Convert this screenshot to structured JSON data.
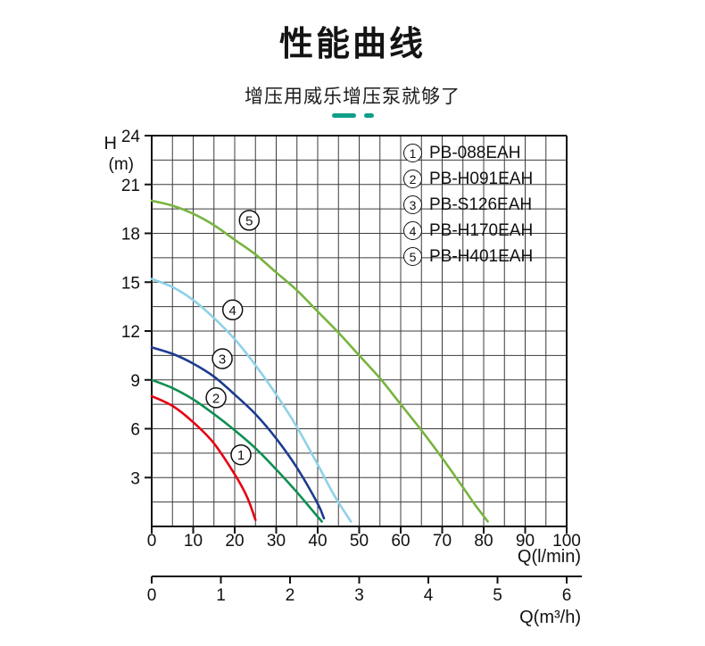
{
  "page": {
    "accent_color": "#0f9f88"
  },
  "chart_data": {
    "type": "line",
    "title": "性能曲线",
    "subtitle": "增压用威乐增压泵就够了",
    "grid": true,
    "legend_position": "top-right-inside",
    "x_axis": {
      "label": "Q(l/min)",
      "min": 0,
      "max": 100,
      "tick_step": 10,
      "grid_step": 5,
      "tick_labels": [
        "0",
        "10",
        "20",
        "30",
        "40",
        "50",
        "60",
        "70",
        "80",
        "90",
        "100"
      ]
    },
    "y_axis": {
      "label": "H",
      "unit": "(m)",
      "min": 0,
      "max": 24,
      "tick_step": 3,
      "grid_step": 1.5,
      "tick_labels": [
        "3",
        "6",
        "9",
        "12",
        "15",
        "18",
        "21",
        "24"
      ]
    },
    "x2_axis": {
      "label": "Q(m³/h)",
      "min": 0,
      "max": 6,
      "tick_step": 1,
      "tick_labels": [
        "0",
        "1",
        "2",
        "3",
        "4",
        "5",
        "6"
      ]
    },
    "legend": [
      {
        "num": "1",
        "label": "PB-088EAH"
      },
      {
        "num": "2",
        "label": "PB-H091EAH"
      },
      {
        "num": "3",
        "label": "PB-S126EAH"
      },
      {
        "num": "4",
        "label": "PB-H170EAH"
      },
      {
        "num": "5",
        "label": "PB-H401EAH"
      }
    ],
    "series": [
      {
        "num": "1",
        "name": "PB-088EAH",
        "color": "#e60013",
        "points": [
          [
            0,
            8
          ],
          [
            5,
            7.4
          ],
          [
            10,
            6.4
          ],
          [
            15,
            5.1
          ],
          [
            20,
            3.2
          ],
          [
            23,
            1.8
          ],
          [
            25,
            0.4
          ]
        ]
      },
      {
        "num": "2",
        "name": "PB-H091EAH",
        "color": "#0e8f52",
        "points": [
          [
            0,
            9
          ],
          [
            5,
            8.5
          ],
          [
            10,
            7.8
          ],
          [
            15,
            6.9
          ],
          [
            20,
            5.9
          ],
          [
            25,
            4.8
          ],
          [
            30,
            3.5
          ],
          [
            35,
            2.1
          ],
          [
            38,
            1.2
          ],
          [
            41,
            0.3
          ]
        ]
      },
      {
        "num": "3",
        "name": "PB-S126EAH",
        "color": "#1d3c91",
        "points": [
          [
            0,
            11
          ],
          [
            5,
            10.6
          ],
          [
            10,
            10
          ],
          [
            15,
            9.2
          ],
          [
            20,
            8.1
          ],
          [
            25,
            6.9
          ],
          [
            30,
            5.4
          ],
          [
            35,
            3.6
          ],
          [
            40,
            1.4
          ],
          [
            41.5,
            0.5
          ]
        ]
      },
      {
        "num": "4",
        "name": "PB-H170EAH",
        "color": "#8fd1e8",
        "points": [
          [
            0,
            15.2
          ],
          [
            5,
            14.7
          ],
          [
            10,
            13.9
          ],
          [
            15,
            12.8
          ],
          [
            20,
            11.5
          ],
          [
            25,
            9.9
          ],
          [
            30,
            8.1
          ],
          [
            35,
            6.1
          ],
          [
            40,
            3.8
          ],
          [
            44,
            1.9
          ],
          [
            48,
            0.3
          ]
        ]
      },
      {
        "num": "5",
        "name": "PB-H401EAH",
        "color": "#78b43e",
        "points": [
          [
            0,
            20
          ],
          [
            5,
            19.7
          ],
          [
            10,
            19.2
          ],
          [
            15,
            18.5
          ],
          [
            20,
            17.6
          ],
          [
            25,
            16.7
          ],
          [
            30,
            15.6
          ],
          [
            35,
            14.5
          ],
          [
            40,
            13.2
          ],
          [
            45,
            11.9
          ],
          [
            50,
            10.5
          ],
          [
            55,
            9.1
          ],
          [
            60,
            7.5
          ],
          [
            65,
            5.9
          ],
          [
            70,
            4.2
          ],
          [
            75,
            2.4
          ],
          [
            78,
            1.3
          ],
          [
            81,
            0.3
          ]
        ]
      }
    ],
    "curve_labels": [
      {
        "num": "1",
        "q": 21.5,
        "h": 4.4
      },
      {
        "num": "2",
        "q": 15.5,
        "h": 7.9
      },
      {
        "num": "3",
        "q": 17,
        "h": 10.3
      },
      {
        "num": "4",
        "q": 19.5,
        "h": 13.3
      },
      {
        "num": "5",
        "q": 23.5,
        "h": 18.8
      }
    ]
  }
}
